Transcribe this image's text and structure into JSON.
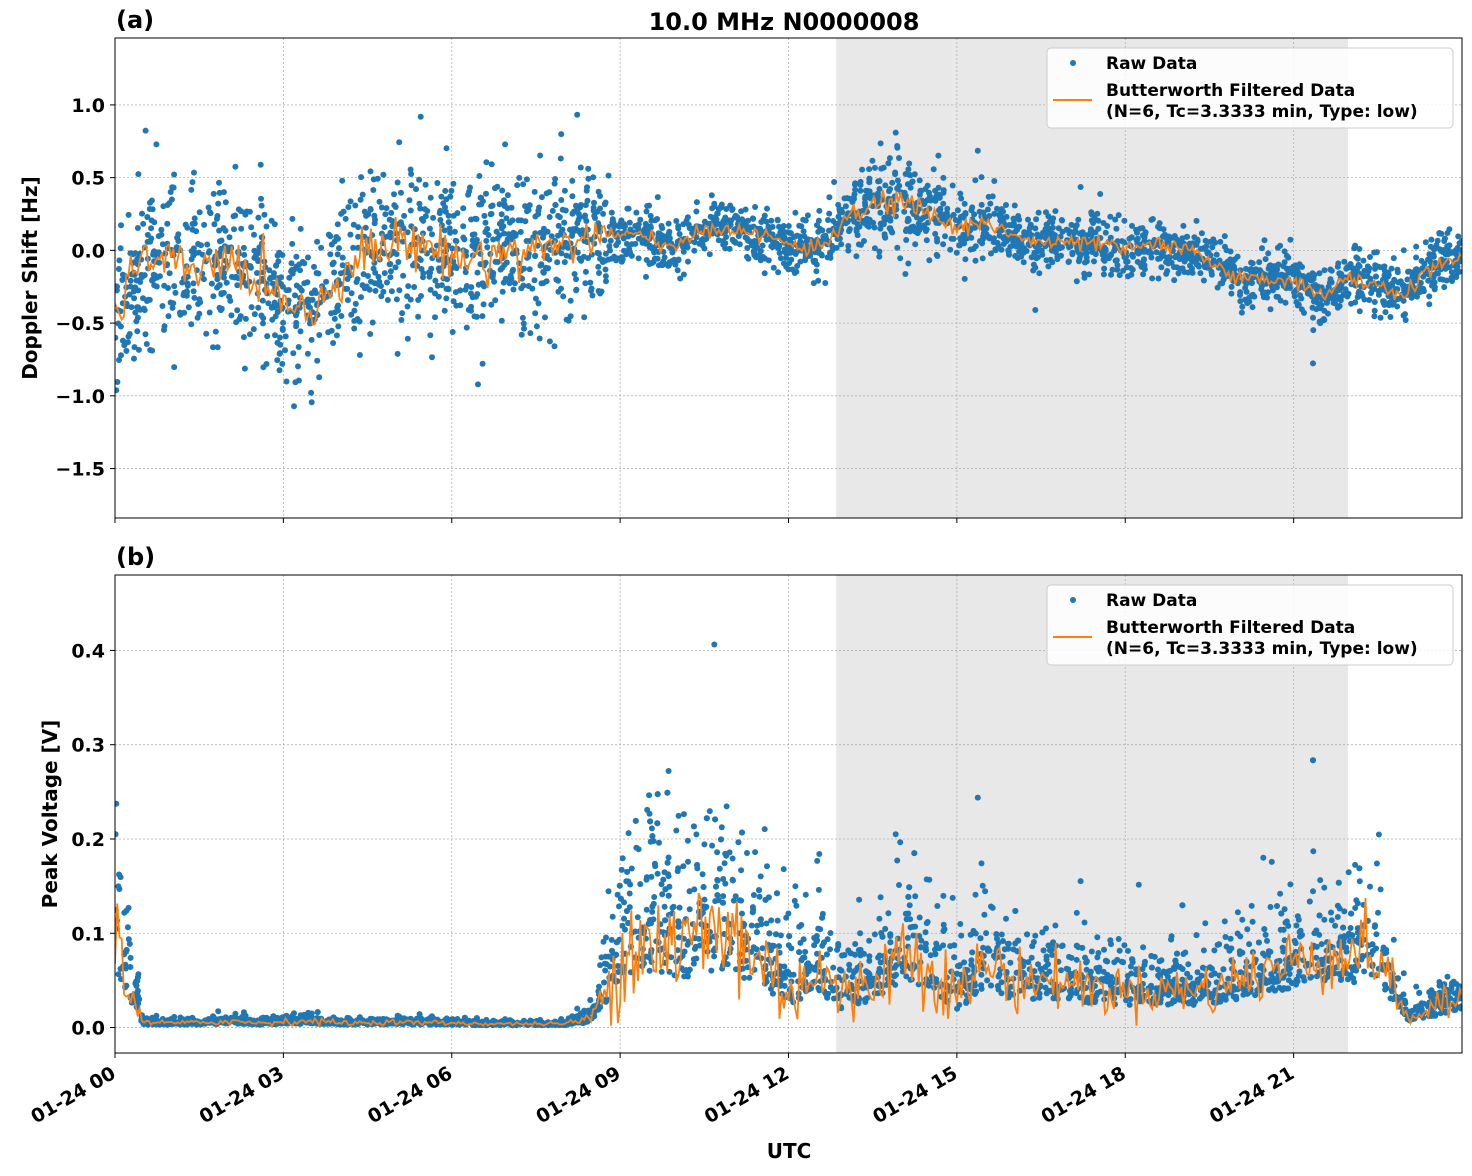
{
  "title": "10.0 MHz N0000008",
  "xlabel": "UTC",
  "x_tick_labels": [
    "01-24 00",
    "01-24 03",
    "01-24 06",
    "01-24 09",
    "01-24 12",
    "01-24 15",
    "01-24 18",
    "01-24 21"
  ],
  "colors": {
    "raw": "#1f77b4",
    "filtered": "#ff7f0e",
    "shade": "#e8e8e8"
  },
  "shaded_interval_hours": [
    12.85,
    21.97
  ],
  "legend": {
    "raw": "Raw Data",
    "filtered_line1": "Butterworth Filtered Data",
    "filtered_line2": "(N=6, Tc=3.3333 min, Type: low)",
    "placement": "upper-right"
  },
  "chart_data": [
    {
      "type": "scatter+line",
      "panel_label": "(a)",
      "ylabel": "Doppler Shift [Hz]",
      "xlim_hours": [
        0,
        24
      ],
      "ylim": [
        -1.84,
        1.46
      ],
      "y_ticks": [
        -1.5,
        -1.0,
        -0.5,
        0.0,
        0.5,
        1.0
      ],
      "y_tick_labels": [
        "−1.5",
        "−1.0",
        "−0.5",
        "0.0",
        "0.5",
        "1.0"
      ],
      "grid": true,
      "x_hours": [
        0,
        0.5,
        1,
        1.5,
        2,
        2.5,
        3,
        3.5,
        4,
        4.5,
        5,
        5.5,
        6,
        6.5,
        7,
        7.5,
        8,
        8.5,
        9,
        9.5,
        10,
        10.5,
        11,
        11.5,
        12,
        12.5,
        13,
        13.5,
        14,
        14.5,
        15,
        15.5,
        16,
        16.5,
        17,
        17.5,
        18,
        18.5,
        19,
        19.5,
        20,
        20.5,
        21,
        21.5,
        22,
        22.5,
        23,
        23.5,
        24
      ],
      "filtered": [
        -0.45,
        -0.05,
        -0.1,
        -0.15,
        -0.05,
        -0.2,
        -0.3,
        -0.45,
        -0.15,
        0.0,
        0.05,
        0.05,
        -0.05,
        -0.05,
        0.0,
        0.0,
        0.05,
        0.1,
        0.1,
        0.1,
        0.0,
        0.15,
        0.15,
        0.1,
        0.05,
        0.0,
        0.2,
        0.3,
        0.35,
        0.25,
        0.15,
        0.2,
        0.1,
        0.05,
        0.05,
        0.05,
        0.0,
        0.05,
        0.0,
        -0.05,
        -0.2,
        -0.2,
        -0.2,
        -0.3,
        -0.2,
        -0.25,
        -0.3,
        -0.1,
        -0.05
      ],
      "raw_spread": [
        0.45,
        0.45,
        0.45,
        0.45,
        0.45,
        0.45,
        0.45,
        0.45,
        0.45,
        0.45,
        0.45,
        0.45,
        0.45,
        0.45,
        0.45,
        0.45,
        0.45,
        0.45,
        0.15,
        0.15,
        0.15,
        0.15,
        0.15,
        0.15,
        0.15,
        0.15,
        0.18,
        0.3,
        0.25,
        0.22,
        0.18,
        0.18,
        0.15,
        0.15,
        0.15,
        0.15,
        0.15,
        0.15,
        0.15,
        0.15,
        0.15,
        0.15,
        0.15,
        0.15,
        0.15,
        0.15,
        0.15,
        0.18,
        0.15
      ]
    },
    {
      "type": "scatter+line",
      "panel_label": "(b)",
      "ylabel": "Peak Voltage [V]",
      "xlim_hours": [
        0,
        24
      ],
      "ylim": [
        -0.027,
        0.48
      ],
      "y_ticks": [
        0.0,
        0.1,
        0.2,
        0.3,
        0.4
      ],
      "y_tick_labels": [
        "0.0",
        "0.1",
        "0.2",
        "0.3",
        "0.4"
      ],
      "grid": true,
      "x_hours": [
        0,
        0.5,
        1,
        1.5,
        2,
        2.5,
        3,
        3.5,
        4,
        4.5,
        5,
        5.5,
        6,
        6.5,
        7,
        7.5,
        8,
        8.5,
        9,
        9.5,
        10,
        10.5,
        11,
        11.5,
        12,
        12.5,
        13,
        13.5,
        14,
        14.5,
        15,
        15.5,
        16,
        16.5,
        17,
        17.5,
        18,
        18.5,
        19,
        19.5,
        20,
        20.5,
        21,
        21.5,
        22,
        22.5,
        23,
        23.5,
        24
      ],
      "filtered": [
        0.1,
        0.005,
        0.005,
        0.005,
        0.007,
        0.005,
        0.006,
        0.007,
        0.005,
        0.005,
        0.006,
        0.005,
        0.005,
        0.004,
        0.004,
        0.004,
        0.004,
        0.01,
        0.08,
        0.1,
        0.08,
        0.1,
        0.1,
        0.07,
        0.04,
        0.06,
        0.03,
        0.05,
        0.08,
        0.07,
        0.03,
        0.07,
        0.05,
        0.05,
        0.05,
        0.04,
        0.04,
        0.04,
        0.04,
        0.04,
        0.05,
        0.06,
        0.07,
        0.08,
        0.08,
        0.08,
        0.01,
        0.02,
        0.03
      ],
      "raw_spread": [
        0.12,
        0.004,
        0.004,
        0.004,
        0.006,
        0.004,
        0.005,
        0.006,
        0.004,
        0.004,
        0.004,
        0.004,
        0.004,
        0.003,
        0.003,
        0.003,
        0.003,
        0.01,
        0.09,
        0.1,
        0.09,
        0.11,
        0.1,
        0.08,
        0.06,
        0.07,
        0.05,
        0.05,
        0.07,
        0.06,
        0.05,
        0.06,
        0.05,
        0.04,
        0.04,
        0.04,
        0.035,
        0.035,
        0.035,
        0.04,
        0.05,
        0.05,
        0.05,
        0.06,
        0.06,
        0.06,
        0.015,
        0.02,
        0.03
      ]
    }
  ]
}
